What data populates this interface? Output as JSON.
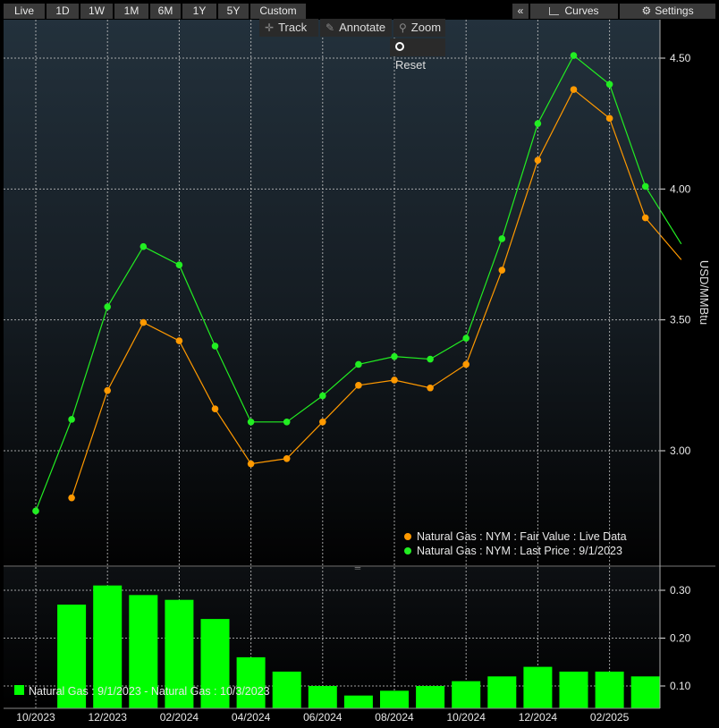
{
  "toolbar": {
    "ranges": [
      {
        "label": "Live",
        "active": true
      },
      {
        "label": "1D",
        "active": false
      },
      {
        "label": "1W",
        "active": false
      },
      {
        "label": "1M",
        "active": true
      },
      {
        "label": "6M",
        "active": false
      },
      {
        "label": "1Y",
        "active": false
      },
      {
        "label": "5Y",
        "active": false
      },
      {
        "label": "Custom",
        "active": false
      }
    ],
    "collapse_label": "«",
    "curves_label": "Curves",
    "settings_label": "Settings"
  },
  "controls": {
    "track_label": "Track",
    "annotate_label": "Annotate",
    "zoom_label": "Zoom",
    "reset_label": "Reset"
  },
  "colors": {
    "fair_value": "#ff9900",
    "last_price": "#22ee22",
    "volume_bar": "#00ff00",
    "grid": "#c8c8c8"
  },
  "chart_data": [
    {
      "type": "line",
      "ylabel": "USD/MMBtu",
      "ylim": [
        2.5,
        4.7
      ],
      "y_ticks": [
        "3.00",
        "3.50",
        "4.00",
        "4.50"
      ],
      "x_ticks": [
        "10/2023",
        "12/2023",
        "02/2024",
        "04/2024",
        "06/2024",
        "08/2024",
        "10/2024",
        "12/2024",
        "02/2025"
      ],
      "legend_position": "bottom-right",
      "series": [
        {
          "name": "Natural Gas : NYM : Fair Value : Live Data",
          "x": [
            "11/2023",
            "12/2023",
            "01/2024",
            "02/2024",
            "03/2024",
            "04/2024",
            "05/2024",
            "06/2024",
            "07/2024",
            "08/2024",
            "09/2024",
            "10/2024",
            "11/2024",
            "12/2024",
            "01/2025",
            "02/2025",
            "03/2025",
            "04/2025"
          ],
          "values": [
            2.82,
            3.23,
            3.49,
            3.42,
            3.16,
            2.95,
            2.97,
            3.11,
            3.25,
            3.27,
            3.24,
            3.33,
            3.69,
            4.11,
            4.38,
            4.27,
            3.89,
            3.73
          ]
        },
        {
          "name": "Natural Gas : NYM : Last Price : 9/1/2023",
          "x": [
            "10/2023",
            "11/2023",
            "12/2023",
            "01/2024",
            "02/2024",
            "03/2024",
            "04/2024",
            "05/2024",
            "06/2024",
            "07/2024",
            "08/2024",
            "09/2024",
            "10/2024",
            "11/2024",
            "12/2024",
            "01/2025",
            "02/2025",
            "03/2025",
            "04/2025"
          ],
          "values": [
            2.77,
            3.12,
            3.55,
            3.78,
            3.71,
            3.4,
            3.11,
            3.11,
            3.21,
            3.33,
            3.36,
            3.35,
            3.43,
            3.81,
            4.25,
            4.51,
            4.4,
            4.01,
            3.79
          ]
        }
      ]
    },
    {
      "type": "bar",
      "ylim": [
        0.05,
        0.33
      ],
      "y_ticks": [
        "0.10",
        "0.20",
        "0.30"
      ],
      "legend_position": "bottom-left",
      "series": [
        {
          "name": "Natural Gas : 9/1/2023 - Natural Gas : 10/3/2023",
          "x": [
            "11/2023",
            "12/2023",
            "01/2024",
            "02/2024",
            "03/2024",
            "04/2024",
            "05/2024",
            "06/2024",
            "07/2024",
            "08/2024",
            "09/2024",
            "10/2024",
            "11/2024",
            "12/2024",
            "01/2025",
            "02/2025",
            "03/2025"
          ],
          "values": [
            0.27,
            0.31,
            0.29,
            0.28,
            0.24,
            0.16,
            0.13,
            0.1,
            0.08,
            0.09,
            0.1,
            0.11,
            0.12,
            0.14,
            0.13,
            0.13,
            0.12
          ]
        }
      ]
    }
  ]
}
